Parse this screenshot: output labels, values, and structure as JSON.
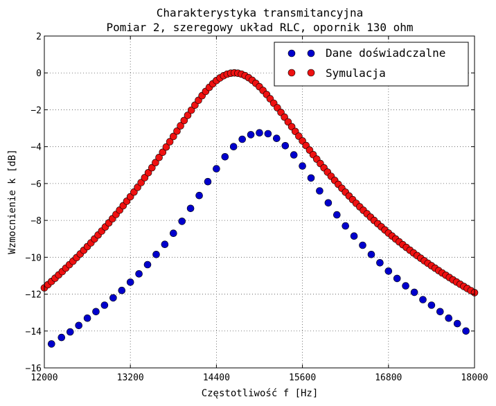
{
  "chart_data": {
    "type": "scatter",
    "title": "Charakterystyka transmitancyjna",
    "subtitle": "Pomiar 2, szeregowy układ RLC, opornik 130 ohm",
    "xlabel": "Częstotliwość f [Hz]",
    "ylabel": "Wzmocnienie k [dB]",
    "xlim": [
      12000,
      18000
    ],
    "ylim": [
      -16,
      2
    ],
    "xticks": [
      12000,
      13200,
      14400,
      15600,
      16800,
      18000
    ],
    "xtick_labels": [
      "12000",
      "13200",
      "14400",
      "15600",
      "16800",
      "18000"
    ],
    "yticks": [
      2,
      0,
      -2,
      -4,
      -6,
      -8,
      -10,
      -12,
      -14,
      -16
    ],
    "ytick_labels": [
      "2",
      "0",
      "−2",
      "−4",
      "−6",
      "−8",
      "−10",
      "−12",
      "−14",
      "−16"
    ],
    "grid": true,
    "legend_position": "top-right",
    "series": [
      {
        "name": "Dane doświadczalne",
        "color": "#0000cc",
        "x": [
          12100,
          12240,
          12360,
          12480,
          12600,
          12720,
          12840,
          12960,
          13080,
          13200,
          13320,
          13440,
          13560,
          13680,
          13800,
          13920,
          14040,
          14160,
          14280,
          14400,
          14520,
          14640,
          14760,
          14880,
          15000,
          15120,
          15240,
          15360,
          15480,
          15600,
          15720,
          15840,
          15960,
          16080,
          16200,
          16320,
          16440,
          16560,
          16680,
          16800,
          16920,
          17040,
          17160,
          17280,
          17400,
          17520,
          17640,
          17760,
          17880
        ],
        "y": [
          -14.7,
          -14.35,
          -14.05,
          -13.7,
          -13.3,
          -12.95,
          -12.6,
          -12.2,
          -11.8,
          -11.35,
          -10.9,
          -10.4,
          -9.85,
          -9.3,
          -8.7,
          -8.05,
          -7.35,
          -6.65,
          -5.9,
          -5.2,
          -4.55,
          -4.0,
          -3.6,
          -3.35,
          -3.25,
          -3.3,
          -3.55,
          -3.95,
          -4.45,
          -5.05,
          -5.7,
          -6.4,
          -7.05,
          -7.7,
          -8.3,
          -8.85,
          -9.35,
          -9.85,
          -10.3,
          -10.75,
          -11.15,
          -11.55,
          -11.9,
          -12.3,
          -12.6,
          -12.95,
          -13.3,
          -13.6,
          -14.0
        ]
      },
      {
        "name": "Symulacja",
        "color": "#ee1111",
        "f0": 14650,
        "q_factor": 9.2,
        "x_step": 50
      }
    ]
  }
}
